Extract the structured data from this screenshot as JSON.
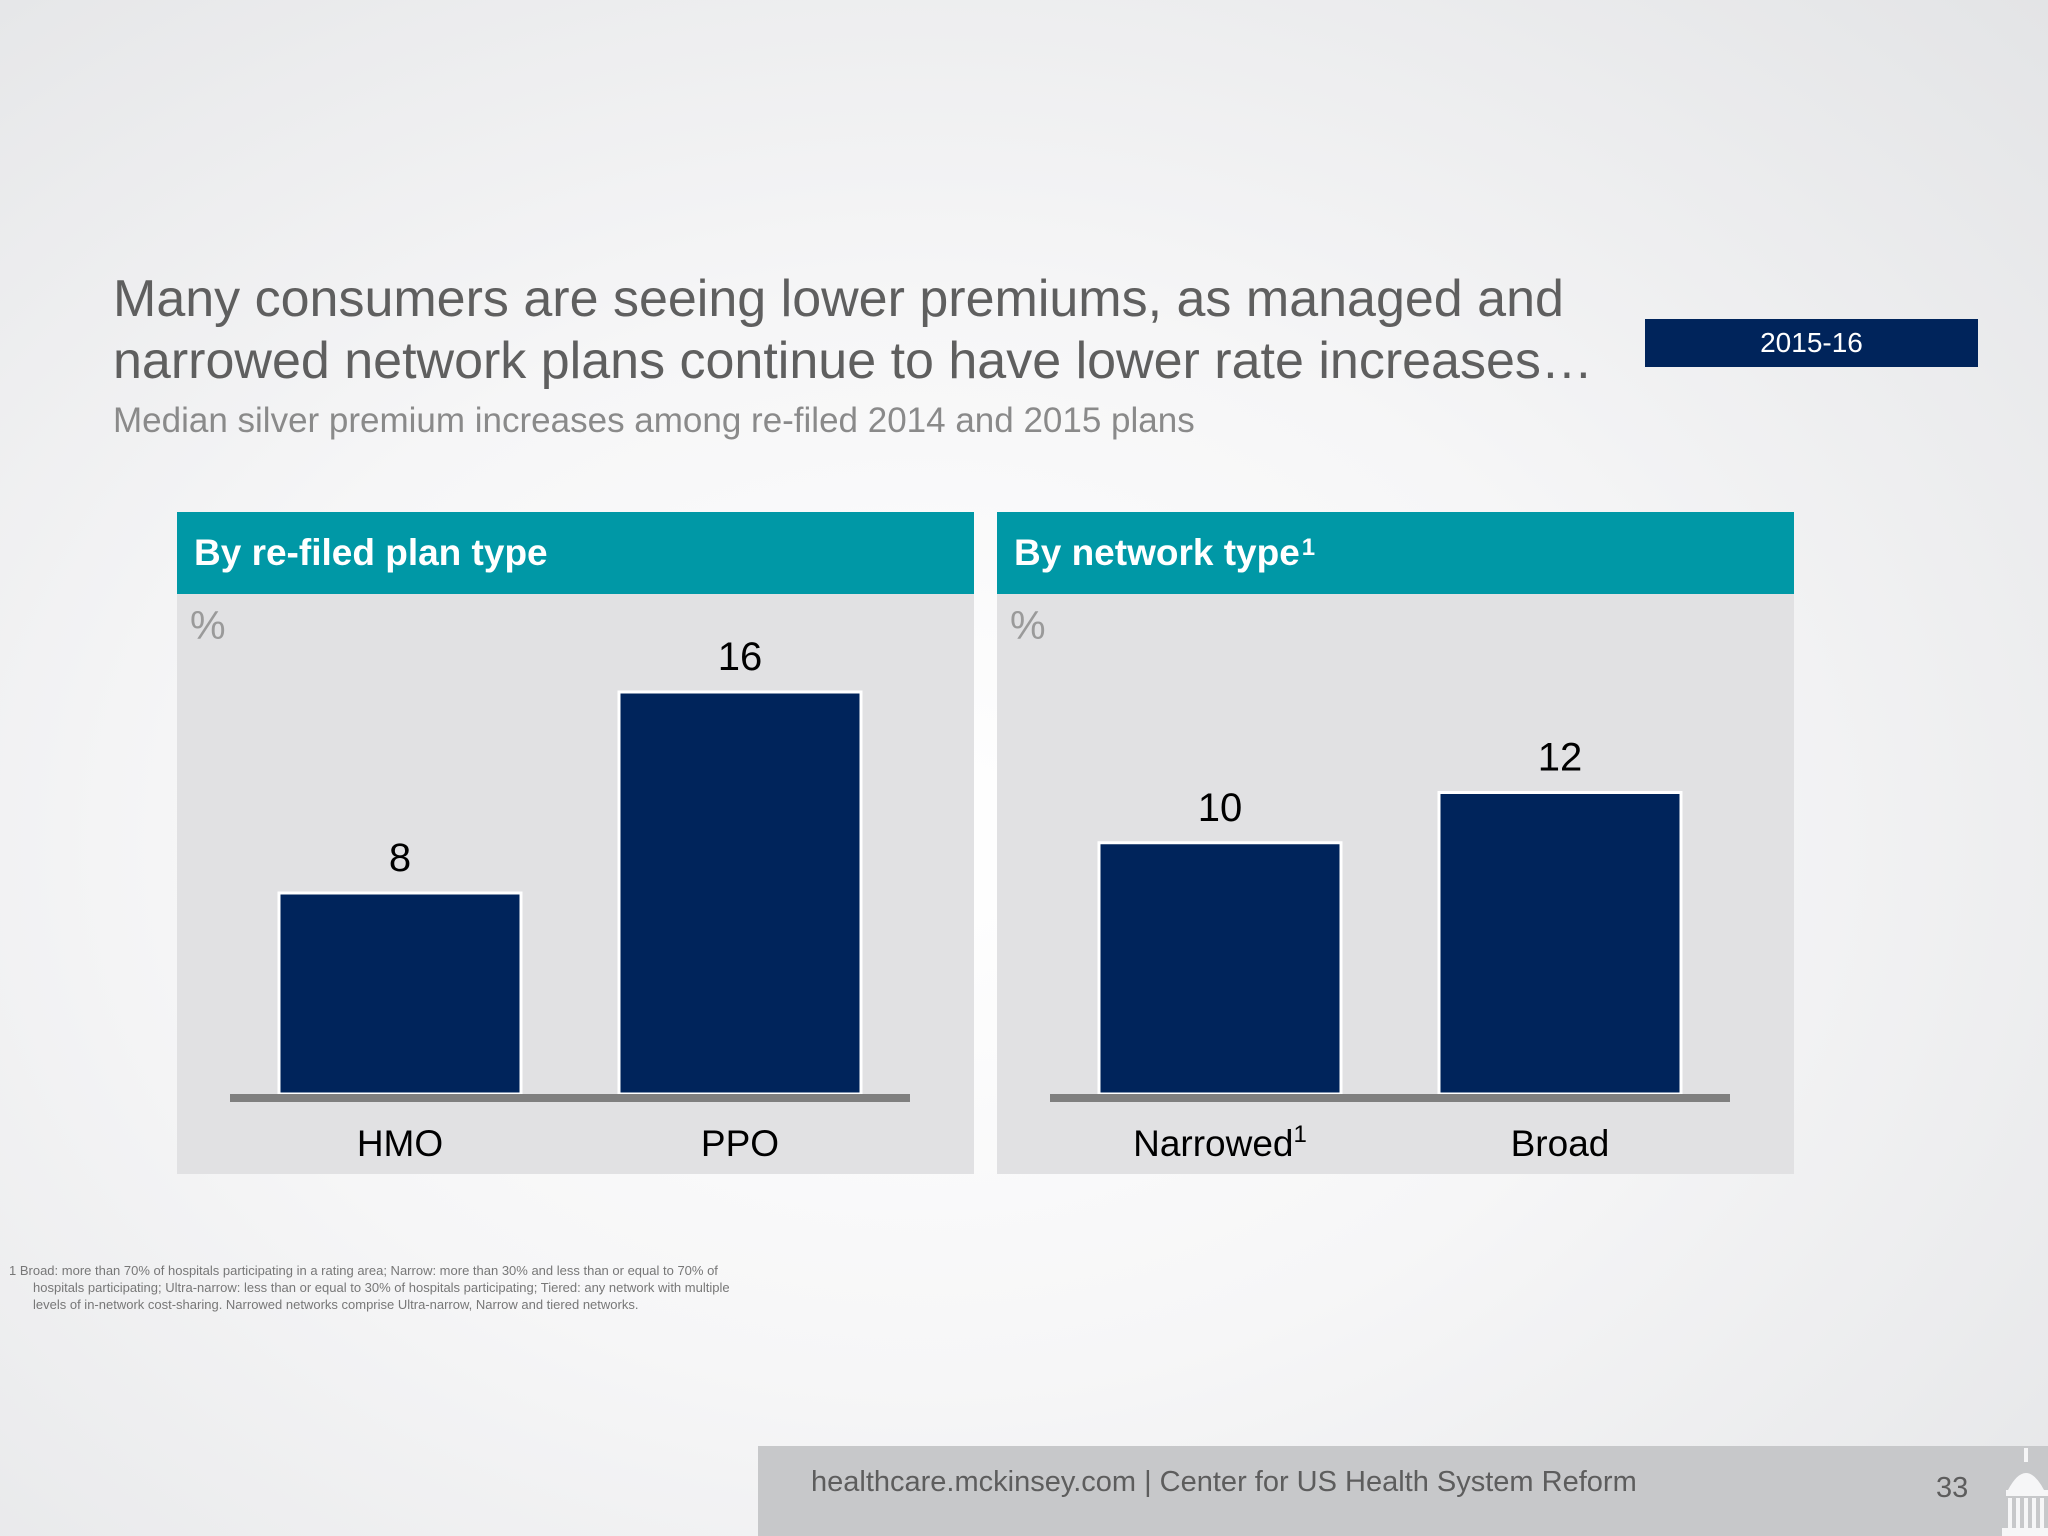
{
  "header": {
    "title": "Many consumers are seeing lower premiums, as managed and narrowed network plans continue to have lower rate increases…",
    "subtitle": "Median silver premium increases among re-filed 2014 and 2015 plans",
    "badge": "2015-16"
  },
  "colors": {
    "panel_header": "#0098a6",
    "bar": "#00245b",
    "badge": "#00245b",
    "baseline": "#7f7f7f",
    "panel_bg": "#e1e1e3"
  },
  "chart_data": [
    {
      "type": "bar",
      "title": "By re-filed plan type",
      "title_superscript": "",
      "unit": "%",
      "categories": [
        "HMO",
        "PPO"
      ],
      "category_superscripts": [
        "",
        ""
      ],
      "values": [
        8,
        16
      ],
      "value_labels": [
        "8",
        "16"
      ],
      "ylim": [
        0,
        16
      ]
    },
    {
      "type": "bar",
      "title": "By network type",
      "title_superscript": "1",
      "unit": "%",
      "categories": [
        "Narrowed",
        "Broad"
      ],
      "category_superscripts": [
        "1",
        ""
      ],
      "values": [
        10,
        12
      ],
      "value_labels": [
        "10",
        "12"
      ],
      "ylim": [
        0,
        16
      ]
    }
  ],
  "footnote": "1 Broad: more than 70% of hospitals participating in a rating area; Narrow: more than 30% and less than or equal to 70% of hospitals participating; Ultra-narrow: less than or equal to 30% of hospitals participating; Tiered: any network with multiple levels of in-network cost-sharing. Narrowed networks comprise Ultra-narrow, Narrow and tiered networks.",
  "footer": {
    "text": "healthcare.mckinsey.com | Center for US Health System Reform",
    "page_number": "33",
    "icon": "capitol-building-icon"
  }
}
